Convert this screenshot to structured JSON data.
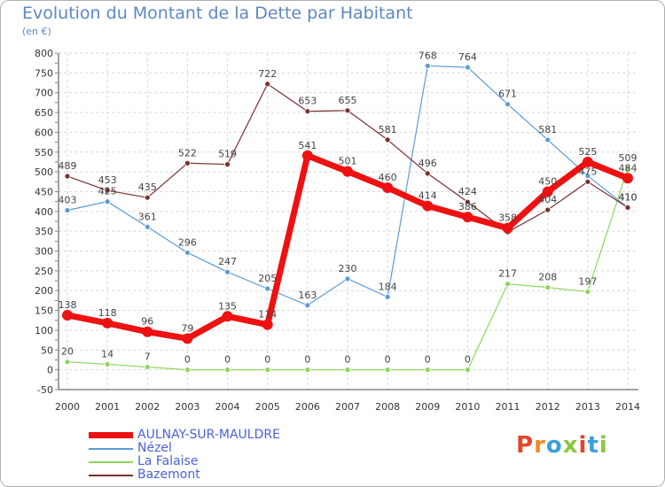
{
  "header": {
    "title": "Evolution du Montant de la Dette par Habitant",
    "subtitle": "(en €)"
  },
  "logo": {
    "text": "Proxiti",
    "colors": [
      "#e2462c",
      "#f28c1f",
      "#3b9fd8",
      "#8cc63f",
      "#e2462c",
      "#3b9fd8",
      "#8cc63f"
    ]
  },
  "chart_data": {
    "type": "line",
    "title": "Evolution du Montant de la Dette par Habitant",
    "ylabel": "(en €)",
    "x": [
      "2000",
      "2001",
      "2002",
      "2003",
      "2004",
      "2005",
      "2006",
      "2007",
      "2008",
      "2009",
      "2010",
      "2011",
      "2012",
      "2013",
      "2014"
    ],
    "ylim": [
      -50,
      800
    ],
    "yticks": [
      -50,
      0,
      50,
      100,
      150,
      200,
      250,
      300,
      350,
      400,
      450,
      500,
      550,
      600,
      650,
      700,
      750,
      800
    ],
    "grid": true,
    "legend_position": "bottom-left",
    "series": [
      {
        "name": "AULNAY-SUR-MAULDRE",
        "color": "#ee1111",
        "width": 7,
        "marker_r": 6,
        "values": [
          138,
          118,
          96,
          79,
          135,
          114,
          541,
          501,
          460,
          414,
          386,
          358,
          450,
          525,
          484
        ],
        "labels": [
          "138",
          "118",
          "96",
          "79",
          "135",
          "114",
          "541",
          "501",
          "460",
          "414",
          "386",
          "358",
          "450",
          "525",
          "484"
        ]
      },
      {
        "name": "Nézel",
        "color": "#5b9bd5",
        "width": 1.2,
        "marker_r": 3,
        "values": [
          403,
          425,
          361,
          296,
          247,
          205,
          163,
          230,
          184,
          768,
          764,
          671,
          581,
          490,
          410
        ],
        "labels": [
          "403",
          "425",
          "361",
          "296",
          "247",
          "205",
          "163",
          "230",
          "184",
          "768",
          "764",
          "671",
          "581",
          "",
          "410"
        ]
      },
      {
        "name": "La Falaise",
        "color": "#8ed65b",
        "width": 1.2,
        "marker_r": 3,
        "values": [
          20,
          14,
          7,
          0,
          0,
          0,
          0,
          0,
          0,
          0,
          0,
          217,
          208,
          197,
          509
        ],
        "labels": [
          "20",
          "14",
          "7",
          "0",
          "0",
          "0",
          "0",
          "0",
          "0",
          "0",
          "0",
          "217",
          "208",
          "197",
          "509"
        ]
      },
      {
        "name": "Bazemont",
        "color": "#7a2e2e",
        "width": 1.2,
        "marker_r": 3,
        "values": [
          489,
          453,
          435,
          522,
          519,
          722,
          653,
          655,
          581,
          496,
          424,
          348,
          404,
          475,
          410
        ],
        "labels": [
          "489",
          "453",
          "435",
          "522",
          "519",
          "722",
          "653",
          "655",
          "581",
          "496",
          "424",
          "",
          "404",
          "475",
          "410"
        ]
      }
    ]
  }
}
